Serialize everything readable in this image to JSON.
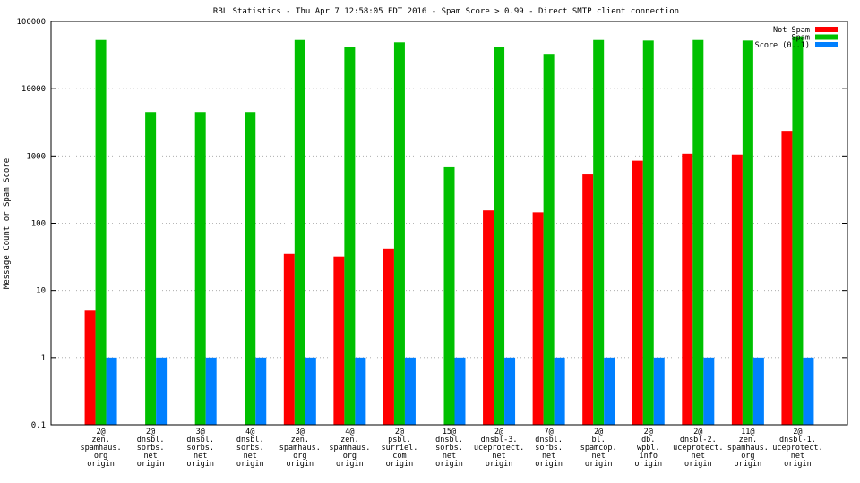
{
  "chart_data": {
    "type": "bar",
    "title": "RBL Statistics - Thu Apr  7 12:58:05 EDT 2016 - Spam Score > 0.99 - Direct SMTP client connection",
    "ylabel": "Message Count or Spam Score",
    "xlabel": "",
    "yscale": "log",
    "ylim": [
      0.1,
      100000
    ],
    "yticks": [
      "0.1",
      "1",
      "10",
      "100",
      "1000",
      "10000",
      "100000"
    ],
    "grid": true,
    "legend_position": "top-right",
    "categories": [
      [
        "2@",
        "zen.",
        "spamhaus.",
        "org",
        "origin"
      ],
      [
        "2@",
        "dnsbl.",
        "sorbs.",
        "net",
        "origin"
      ],
      [
        "3@",
        "dnsbl.",
        "sorbs.",
        "net",
        "origin"
      ],
      [
        "4@",
        "dnsbl.",
        "sorbs.",
        "net",
        "origin"
      ],
      [
        "3@",
        "zen.",
        "spamhaus.",
        "org",
        "origin"
      ],
      [
        "4@",
        "zen.",
        "spamhaus.",
        "org",
        "origin"
      ],
      [
        "2@",
        "psbl.",
        "surriel.",
        "com",
        "origin"
      ],
      [
        "15@",
        "dnsbl.",
        "sorbs.",
        "net",
        "origin"
      ],
      [
        "2@",
        "dnsbl-3.",
        "uceprotect.",
        "net",
        "origin"
      ],
      [
        "7@",
        "dnsbl.",
        "sorbs.",
        "net",
        "origin"
      ],
      [
        "2@",
        "bl.",
        "spamcop.",
        "net",
        "origin"
      ],
      [
        "2@",
        "db.",
        "wpbl.",
        "info",
        "origin"
      ],
      [
        "2@",
        "dnsbl-2.",
        "uceprotect.",
        "net",
        "origin"
      ],
      [
        "11@",
        "zen.",
        "spamhaus.",
        "org",
        "origin"
      ],
      [
        "2@",
        "dnsbl-1.",
        "uceprotect.",
        "net",
        "origin"
      ]
    ],
    "series": [
      {
        "name": "Not Spam",
        "color": "#ff0000",
        "values": [
          5,
          null,
          null,
          null,
          35,
          32,
          42,
          null,
          155,
          145,
          530,
          850,
          1080,
          1050,
          2300
        ]
      },
      {
        "name": "Spam",
        "color": "#00c000",
        "values": [
          53000,
          4500,
          4500,
          4500,
          53000,
          42000,
          49000,
          680,
          42000,
          33000,
          53000,
          52000,
          53000,
          52000,
          60000
        ]
      },
      {
        "name": "Score (0..1)",
        "color": "#0080ff",
        "values": [
          1,
          1,
          1,
          1,
          1,
          1,
          1,
          1,
          1,
          1,
          1,
          1,
          1,
          1,
          1
        ]
      }
    ]
  }
}
